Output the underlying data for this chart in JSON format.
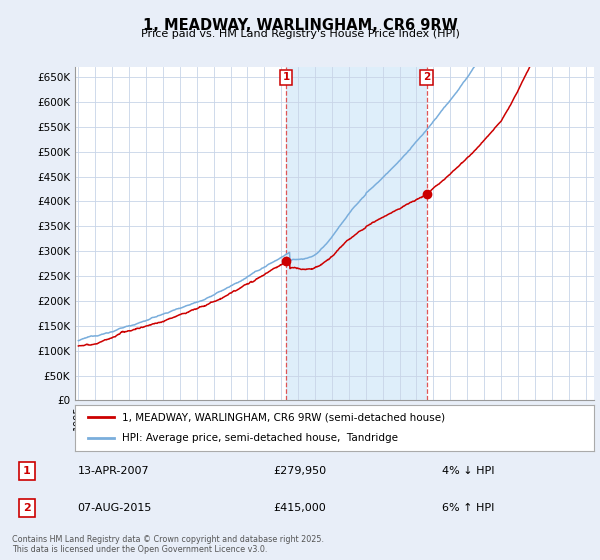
{
  "title": "1, MEADWAY, WARLINGHAM, CR6 9RW",
  "subtitle": "Price paid vs. HM Land Registry's House Price Index (HPI)",
  "ylim": [
    0,
    670000
  ],
  "yticks": [
    0,
    50000,
    100000,
    150000,
    200000,
    250000,
    300000,
    350000,
    400000,
    450000,
    500000,
    550000,
    600000,
    650000
  ],
  "ytick_labels": [
    "£0",
    "£50K",
    "£100K",
    "£150K",
    "£200K",
    "£250K",
    "£300K",
    "£350K",
    "£400K",
    "£450K",
    "£500K",
    "£550K",
    "£600K",
    "£650K"
  ],
  "xlim_start": 1994.8,
  "xlim_end": 2025.5,
  "sale1_x": 2007.28,
  "sale1_y": 279950,
  "sale2_x": 2015.6,
  "sale2_y": 415000,
  "legend_line1": "1, MEADWAY, WARLINGHAM, CR6 9RW (semi-detached house)",
  "legend_line2": "HPI: Average price, semi-detached house,  Tandridge",
  "sale1_date": "13-APR-2007",
  "sale1_price": "£279,950",
  "sale1_hpi": "4% ↓ HPI",
  "sale2_date": "07-AUG-2015",
  "sale2_price": "£415,000",
  "sale2_hpi": "6% ↑ HPI",
  "footer": "Contains HM Land Registry data © Crown copyright and database right 2025.\nThis data is licensed under the Open Government Licence v3.0.",
  "line_color_red": "#cc0000",
  "line_color_blue": "#7aaedc",
  "shade_color": "#d0e8f8",
  "background_color": "#e8eef8",
  "plot_bg_color": "#ffffff",
  "grid_color": "#c8d4e8",
  "dashed_line_color": "#dd4444"
}
